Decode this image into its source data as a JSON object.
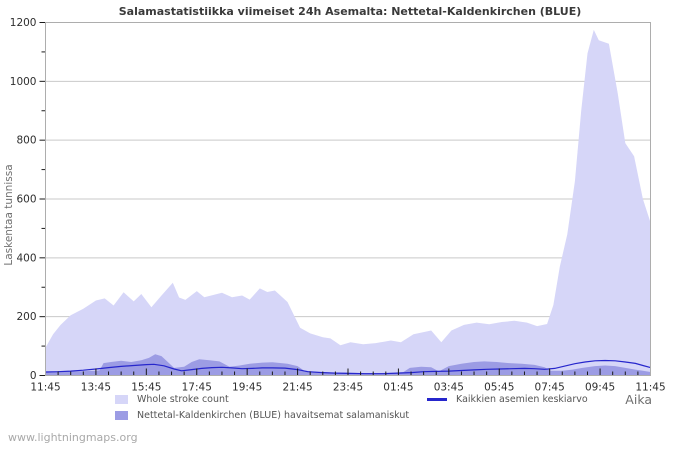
{
  "title": "Salamastatistiikka viimeiset 24h Asemalta: Nettetal-Kaldenkirchen (BLUE)",
  "watermark": "www.lightningmaps.org",
  "axes": {
    "y_label": "Laskentaa tunnissa",
    "x_label": "Aika"
  },
  "colors": {
    "grid": "#c9c9c9",
    "border": "#adadad",
    "tick": "#1a1a1a",
    "axis_text": "#2f2f2f",
    "title_text": "#3a3a3a",
    "legend_text": "#555555",
    "gray_label": "#707070",
    "watermark_text": "#a9a9a9",
    "background": "#ffffff"
  },
  "chart_data": {
    "type": "area",
    "title": "Salamastatistiikka viimeiset 24h Asemalta: Nettetal-Kaldenkirchen (BLUE)",
    "xlabel": "Aika",
    "ylabel": "Laskentaa tunnissa",
    "ylim": [
      0,
      1200
    ],
    "xlim_hours": [
      0,
      24
    ],
    "grid": true,
    "legend_position": "bottom",
    "y_tick_values": [
      0,
      200,
      400,
      600,
      800,
      1000,
      1200
    ],
    "y_minor_step": 100,
    "x_tick_hours": [
      0,
      2,
      4,
      6,
      8,
      10,
      12,
      14,
      16,
      18,
      20,
      22,
      24
    ],
    "x_tick_labels": [
      "11:45",
      "13:45",
      "15:45",
      "17:45",
      "19:45",
      "21:45",
      "23:45",
      "01:45",
      "03:45",
      "05:45",
      "07:45",
      "09:45",
      "11:45"
    ],
    "x_minor_step_hours": 0.5,
    "series": [
      {
        "name": "Whole stroke count",
        "type": "area",
        "color": "#d6d6f8",
        "points": [
          [
            0,
            95
          ],
          [
            0.3,
            140
          ],
          [
            0.6,
            172
          ],
          [
            1,
            205
          ],
          [
            1.5,
            227
          ],
          [
            2,
            255
          ],
          [
            2.35,
            262
          ],
          [
            2.7,
            238
          ],
          [
            3.1,
            283
          ],
          [
            3.5,
            252
          ],
          [
            3.8,
            277
          ],
          [
            4.2,
            232
          ],
          [
            4.6,
            272
          ],
          [
            5.05,
            315
          ],
          [
            5.3,
            265
          ],
          [
            5.55,
            257
          ],
          [
            6,
            287
          ],
          [
            6.3,
            266
          ],
          [
            7,
            281
          ],
          [
            7.4,
            266
          ],
          [
            7.8,
            272
          ],
          [
            8.1,
            258
          ],
          [
            8.5,
            296
          ],
          [
            8.8,
            284
          ],
          [
            9.1,
            289
          ],
          [
            9.6,
            250
          ],
          [
            10.1,
            162
          ],
          [
            10.5,
            143
          ],
          [
            11,
            130
          ],
          [
            11.3,
            126
          ],
          [
            11.7,
            103
          ],
          [
            12.1,
            113
          ],
          [
            12.6,
            106
          ],
          [
            13.1,
            110
          ],
          [
            13.7,
            119
          ],
          [
            14.1,
            113
          ],
          [
            14.6,
            140
          ],
          [
            15.3,
            153
          ],
          [
            15.7,
            113
          ],
          [
            16.1,
            153
          ],
          [
            16.6,
            172
          ],
          [
            17.1,
            180
          ],
          [
            17.6,
            174
          ],
          [
            18.1,
            182
          ],
          [
            18.6,
            186
          ],
          [
            19.1,
            180
          ],
          [
            19.5,
            168
          ],
          [
            19.9,
            175
          ],
          [
            20.15,
            240
          ],
          [
            20.4,
            370
          ],
          [
            20.7,
            480
          ],
          [
            21,
            660
          ],
          [
            21.25,
            900
          ],
          [
            21.5,
            1095
          ],
          [
            21.75,
            1175
          ],
          [
            21.95,
            1140
          ],
          [
            22.35,
            1128
          ],
          [
            22.7,
            960
          ],
          [
            23,
            790
          ],
          [
            23.35,
            745
          ],
          [
            23.7,
            600
          ],
          [
            24,
            520
          ]
        ]
      },
      {
        "name": "Nettetal-Kaldenkirchen (BLUE) havaitsemat salamaniskut",
        "type": "area",
        "color": "#9c9ce4",
        "points": [
          [
            0,
            12
          ],
          [
            0.5,
            15
          ],
          [
            1,
            14
          ],
          [
            1.5,
            15
          ],
          [
            2,
            16
          ],
          [
            2.15,
            18
          ],
          [
            2.3,
            42
          ],
          [
            2.6,
            46
          ],
          [
            3,
            50
          ],
          [
            3.4,
            46
          ],
          [
            3.8,
            52
          ],
          [
            4.1,
            60
          ],
          [
            4.35,
            72
          ],
          [
            4.6,
            66
          ],
          [
            4.85,
            46
          ],
          [
            5.1,
            26
          ],
          [
            5.5,
            30
          ],
          [
            5.8,
            46
          ],
          [
            6.1,
            55
          ],
          [
            6.5,
            52
          ],
          [
            6.9,
            48
          ],
          [
            7.3,
            30
          ],
          [
            7.7,
            34
          ],
          [
            8.1,
            40
          ],
          [
            8.6,
            44
          ],
          [
            9,
            45
          ],
          [
            9.6,
            40
          ],
          [
            10,
            32
          ],
          [
            10.25,
            17
          ],
          [
            10.8,
            12
          ],
          [
            11.4,
            10
          ],
          [
            12,
            10
          ],
          [
            12.6,
            8
          ],
          [
            13.2,
            8
          ],
          [
            13.8,
            10
          ],
          [
            14.2,
            12
          ],
          [
            14.45,
            26
          ],
          [
            14.9,
            30
          ],
          [
            15.3,
            28
          ],
          [
            15.6,
            14
          ],
          [
            16,
            32
          ],
          [
            16.5,
            40
          ],
          [
            17,
            46
          ],
          [
            17.4,
            48
          ],
          [
            17.9,
            46
          ],
          [
            18.4,
            42
          ],
          [
            18.9,
            40
          ],
          [
            19.4,
            36
          ],
          [
            19.8,
            28
          ],
          [
            20.05,
            16
          ],
          [
            20.5,
            16
          ],
          [
            20.9,
            20
          ],
          [
            21.3,
            26
          ],
          [
            21.8,
            32
          ],
          [
            22.2,
            34
          ],
          [
            22.6,
            32
          ],
          [
            23,
            26
          ],
          [
            23.4,
            20
          ],
          [
            23.7,
            16
          ],
          [
            24,
            12
          ]
        ]
      },
      {
        "name": "Kaikkien asemien keskiarvo",
        "type": "line",
        "color": "#2626cc",
        "points": [
          [
            0,
            12
          ],
          [
            0.5,
            13
          ],
          [
            1,
            15
          ],
          [
            1.5,
            18
          ],
          [
            2,
            22
          ],
          [
            2.5,
            27
          ],
          [
            3,
            31
          ],
          [
            3.5,
            34
          ],
          [
            4,
            37
          ],
          [
            4.3,
            38
          ],
          [
            4.7,
            33
          ],
          [
            5.1,
            22
          ],
          [
            5.4,
            16
          ],
          [
            5.8,
            20
          ],
          [
            6.2,
            24
          ],
          [
            6.6,
            27
          ],
          [
            7,
            28
          ],
          [
            7.4,
            26
          ],
          [
            7.8,
            23
          ],
          [
            8.2,
            24
          ],
          [
            8.6,
            26
          ],
          [
            9,
            26
          ],
          [
            9.5,
            25
          ],
          [
            10,
            20
          ],
          [
            10.4,
            13
          ],
          [
            11,
            10
          ],
          [
            11.5,
            8
          ],
          [
            12,
            7
          ],
          [
            12.7,
            6
          ],
          [
            13.4,
            6
          ],
          [
            14,
            8
          ],
          [
            14.5,
            10
          ],
          [
            15,
            13
          ],
          [
            15.5,
            14
          ],
          [
            16,
            15
          ],
          [
            16.5,
            17
          ],
          [
            17,
            19
          ],
          [
            17.5,
            21
          ],
          [
            18,
            22
          ],
          [
            18.5,
            23
          ],
          [
            19,
            24
          ],
          [
            19.4,
            23
          ],
          [
            19.8,
            21
          ],
          [
            20.2,
            24
          ],
          [
            20.6,
            32
          ],
          [
            21,
            40
          ],
          [
            21.4,
            46
          ],
          [
            21.8,
            50
          ],
          [
            22.2,
            51
          ],
          [
            22.6,
            50
          ],
          [
            23,
            46
          ],
          [
            23.4,
            41
          ],
          [
            23.7,
            34
          ],
          [
            24,
            27
          ]
        ]
      }
    ]
  }
}
